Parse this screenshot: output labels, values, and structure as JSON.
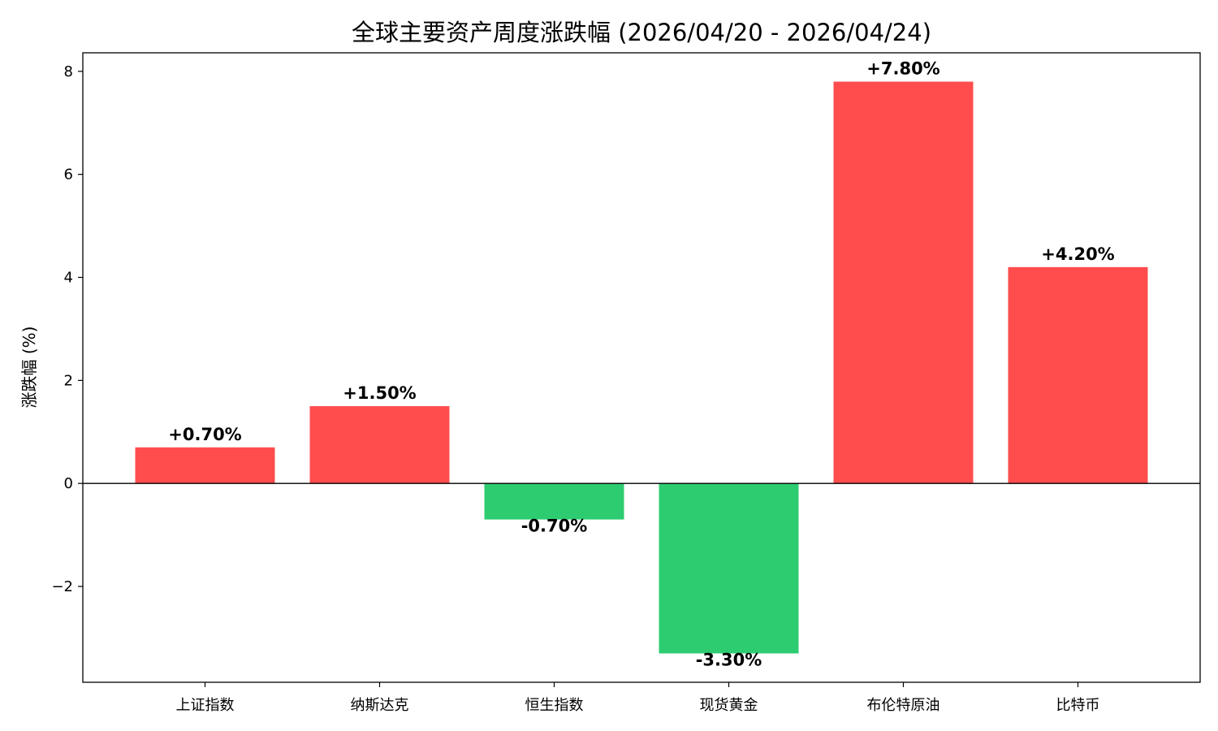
{
  "chart_data": {
    "type": "bar",
    "title": "全球主要资产周度涨跌幅 (2026/04/20 - 2026/04/24)",
    "xlabel": "",
    "ylabel": "涨跌幅 (%)",
    "categories": [
      "上证指数",
      "纳斯达克",
      "恒生指数",
      "现货黄金",
      "布伦特原油",
      "比特币"
    ],
    "values": [
      0.7,
      1.5,
      -0.7,
      -3.3,
      7.8,
      4.2
    ],
    "data_labels": [
      "+0.70%",
      "+1.50%",
      "-0.70%",
      "-3.30%",
      "+7.80%",
      "+4.20%"
    ],
    "ylim": [
      -3.86,
      8.36
    ],
    "yticks": [
      -2,
      0,
      2,
      4,
      6,
      8
    ],
    "ytick_labels": [
      "−2",
      "0",
      "2",
      "4",
      "6",
      "8"
    ],
    "grid": false,
    "zero_line": true,
    "colors": {
      "positive": "#ff4d4d",
      "negative": "#2ecc71",
      "axis": "#000000"
    }
  }
}
